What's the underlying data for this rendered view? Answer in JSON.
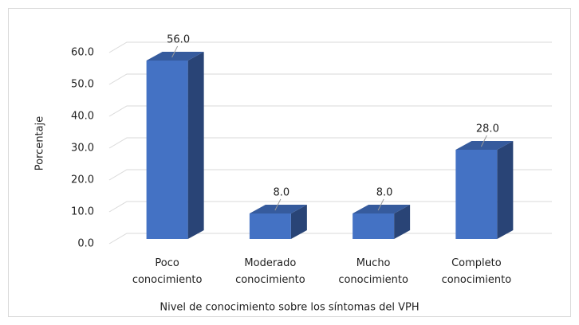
{
  "chart_data": {
    "type": "bar3d",
    "categories": [
      "Poco conocimiento",
      "Moderado conocimiento",
      "Mucho conocimiento",
      "Completo conocimiento"
    ],
    "values": [
      56,
      8,
      8,
      28
    ],
    "value_labels": [
      "56.0",
      "8.0",
      "8.0",
      "28.0"
    ],
    "color": "#4472c4",
    "xlabel": "Nivel de conocimiento sobre los síntomas del VPH",
    "ylabel": "Porcentaje",
    "ylim": [
      0,
      60
    ],
    "yticks": [
      {
        "value": 0,
        "label": "0.0"
      },
      {
        "value": 10,
        "label": "10.0"
      },
      {
        "value": 20,
        "label": "20.0"
      },
      {
        "value": 30,
        "label": "30.0"
      },
      {
        "value": 40,
        "label": "40.0"
      },
      {
        "value": 50,
        "label": "50.0"
      },
      {
        "value": 60,
        "label": "60.0"
      }
    ],
    "grid": true
  }
}
